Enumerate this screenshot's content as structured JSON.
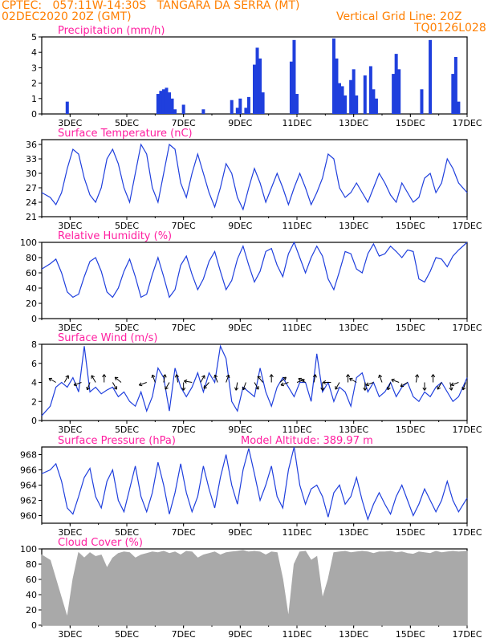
{
  "header": {
    "line1_left": "CPTEC:   057:11W-14:30S   TANGARA DA SERRA (MT)",
    "line2_left": "02DEC2020 20Z (GMT)",
    "line2_right": "Vertical Grid Line: 20Z",
    "line3_right": "TQ0126L028"
  },
  "colors": {
    "header": "#ff7f00",
    "panel_title": "#ff1fa0",
    "series": "#1f3fdd",
    "cloud": "#a9a9a9"
  },
  "x_axis": {
    "labels": [
      "3DEC",
      "5DEC",
      "7DEC",
      "9DEC",
      "11DEC",
      "13DEC",
      "15DEC",
      "17DEC"
    ],
    "label_days": [
      3,
      5,
      7,
      9,
      11,
      13,
      15,
      17
    ],
    "start_day": 2,
    "end_day": 17
  },
  "chart_data": [
    {
      "type": "bar",
      "title": "Precipitation (mm/h)",
      "ylim": [
        0,
        5
      ],
      "yticks": [
        0,
        1,
        2,
        3,
        4,
        5
      ],
      "x_day": [
        2.9,
        6.1,
        6.2,
        6.3,
        6.4,
        6.5,
        6.6,
        6.7,
        7.0,
        7.7,
        8.7,
        8.9,
        9.0,
        9.2,
        9.3,
        9.5,
        9.6,
        9.7,
        9.8,
        10.8,
        10.9,
        11.0,
        12.3,
        12.4,
        12.5,
        12.6,
        12.7,
        12.9,
        13.0,
        13.1,
        13.4,
        13.6,
        13.7,
        13.8,
        14.4,
        14.5,
        14.6,
        15.4,
        15.7,
        16.5,
        16.6,
        16.7
      ],
      "values": [
        0.8,
        1.3,
        1.5,
        1.6,
        1.7,
        1.4,
        1.0,
        0.3,
        0.6,
        0.3,
        0.9,
        0.4,
        1.0,
        0.4,
        1.1,
        3.2,
        4.3,
        3.6,
        1.4,
        3.4,
        4.8,
        1.3,
        4.9,
        3.6,
        2.0,
        1.8,
        1.2,
        2.2,
        2.9,
        1.2,
        2.5,
        3.1,
        1.6,
        1.0,
        2.6,
        3.9,
        2.9,
        1.6,
        4.8,
        2.6,
        3.7,
        0.8
      ]
    },
    {
      "type": "line",
      "title": "Surface Temperature (nC)",
      "ylim": [
        21,
        37
      ],
      "yticks": [
        21,
        24,
        27,
        30,
        33,
        36
      ],
      "x_day": [
        2.0,
        2.3,
        2.5,
        2.7,
        2.9,
        3.1,
        3.3,
        3.5,
        3.7,
        3.9,
        4.1,
        4.3,
        4.5,
        4.7,
        4.9,
        5.1,
        5.3,
        5.5,
        5.7,
        5.9,
        6.1,
        6.3,
        6.5,
        6.7,
        6.9,
        7.1,
        7.3,
        7.5,
        7.7,
        7.9,
        8.1,
        8.3,
        8.5,
        8.7,
        8.9,
        9.1,
        9.3,
        9.5,
        9.7,
        9.9,
        10.1,
        10.3,
        10.5,
        10.7,
        10.9,
        11.1,
        11.3,
        11.5,
        11.7,
        11.9,
        12.1,
        12.3,
        12.5,
        12.7,
        12.9,
        13.1,
        13.3,
        13.5,
        13.7,
        13.9,
        14.1,
        14.3,
        14.5,
        14.7,
        14.9,
        15.1,
        15.3,
        15.5,
        15.7,
        15.9,
        16.1,
        16.3,
        16.5,
        16.7,
        17.0
      ],
      "values": [
        26,
        25,
        23.5,
        26,
        31,
        35,
        34,
        29,
        25.5,
        24,
        27,
        33,
        35,
        32,
        27,
        24,
        30,
        36,
        34,
        27,
        24,
        30,
        36,
        35,
        28,
        25,
        30,
        34,
        30,
        26,
        23,
        27,
        32,
        30,
        25,
        22.5,
        27,
        31,
        28,
        24,
        27,
        30,
        27,
        23.5,
        27,
        30,
        27,
        23.5,
        26,
        29,
        34,
        33,
        27,
        25,
        26,
        28,
        26,
        24,
        27,
        30,
        28,
        25.5,
        24,
        28,
        26,
        24,
        25,
        29,
        30,
        26,
        28,
        33,
        31,
        28,
        26
      ]
    },
    {
      "type": "line",
      "title": "Relative Humidity (%)",
      "ylim": [
        0,
        100
      ],
      "yticks": [
        0,
        20,
        40,
        60,
        80,
        100
      ],
      "x_day": [
        2.0,
        2.3,
        2.5,
        2.7,
        2.9,
        3.1,
        3.3,
        3.5,
        3.7,
        3.9,
        4.1,
        4.3,
        4.5,
        4.7,
        4.9,
        5.1,
        5.3,
        5.5,
        5.7,
        5.9,
        6.1,
        6.3,
        6.5,
        6.7,
        6.9,
        7.1,
        7.3,
        7.5,
        7.7,
        7.9,
        8.1,
        8.3,
        8.5,
        8.7,
        8.9,
        9.1,
        9.3,
        9.5,
        9.7,
        9.9,
        10.1,
        10.3,
        10.5,
        10.7,
        10.9,
        11.1,
        11.3,
        11.5,
        11.7,
        11.9,
        12.1,
        12.3,
        12.5,
        12.7,
        12.9,
        13.1,
        13.3,
        13.5,
        13.7,
        13.9,
        14.1,
        14.3,
        14.5,
        14.7,
        14.9,
        15.1,
        15.3,
        15.5,
        15.7,
        15.9,
        16.1,
        16.3,
        16.5,
        16.7,
        17.0
      ],
      "values": [
        65,
        72,
        78,
        60,
        35,
        28,
        32,
        55,
        75,
        80,
        62,
        35,
        28,
        40,
        62,
        78,
        55,
        28,
        32,
        58,
        80,
        55,
        28,
        38,
        70,
        82,
        58,
        38,
        52,
        75,
        88,
        62,
        38,
        50,
        78,
        95,
        70,
        48,
        62,
        88,
        92,
        70,
        55,
        85,
        100,
        80,
        60,
        80,
        95,
        82,
        52,
        38,
        62,
        88,
        85,
        65,
        60,
        85,
        98,
        82,
        85,
        95,
        88,
        80,
        90,
        88,
        52,
        48,
        62,
        80,
        78,
        68,
        82,
        90,
        100
      ]
    },
    {
      "type": "line",
      "title": "Surface Wind (m/s)",
      "ylim": [
        0,
        8
      ],
      "yticks": [
        0,
        2,
        4,
        6,
        8
      ],
      "x_day": [
        2.0,
        2.3,
        2.5,
        2.7,
        2.9,
        3.1,
        3.3,
        3.5,
        3.7,
        3.9,
        4.1,
        4.3,
        4.5,
        4.7,
        4.9,
        5.1,
        5.3,
        5.5,
        5.7,
        5.9,
        6.1,
        6.3,
        6.5,
        6.7,
        6.9,
        7.1,
        7.3,
        7.5,
        7.7,
        7.9,
        8.1,
        8.3,
        8.5,
        8.7,
        8.9,
        9.1,
        9.3,
        9.5,
        9.7,
        9.9,
        10.1,
        10.3,
        10.5,
        10.7,
        10.9,
        11.1,
        11.3,
        11.5,
        11.7,
        11.9,
        12.1,
        12.3,
        12.5,
        12.7,
        12.9,
        13.1,
        13.3,
        13.5,
        13.7,
        13.9,
        14.1,
        14.3,
        14.5,
        14.7,
        14.9,
        15.1,
        15.3,
        15.5,
        15.7,
        15.9,
        16.1,
        16.3,
        16.5,
        16.7,
        17.0
      ],
      "values": [
        0.5,
        1.5,
        3.5,
        4.0,
        3.5,
        4.5,
        3.0,
        7.8,
        3.0,
        3.5,
        2.8,
        3.2,
        3.5,
        2.5,
        3.0,
        2.0,
        1.5,
        3.0,
        1.0,
        2.5,
        5.5,
        4.5,
        1.0,
        5.5,
        3.5,
        2.5,
        3.5,
        5.0,
        3.0,
        5.0,
        4.0,
        7.8,
        6.5,
        2.0,
        1.0,
        3.5,
        3.0,
        2.5,
        5.5,
        3.0,
        1.5,
        3.5,
        4.5,
        3.5,
        2.5,
        4.0,
        4.0,
        2.0,
        7.0,
        3.0,
        4.0,
        2.0,
        3.5,
        3.0,
        1.5,
        4.5,
        5.0,
        3.0,
        4.0,
        2.5,
        3.0,
        4.0,
        2.5,
        3.5,
        4.0,
        2.5,
        2.0,
        3.0,
        2.5,
        3.5,
        4.0,
        3.0,
        2.0,
        2.5,
        4.5
      ]
    },
    {
      "type": "line",
      "title": "Surface Pressure (hPa)",
      "ylim": [
        959,
        969
      ],
      "yticks": [
        960,
        962,
        964,
        966,
        968
      ],
      "annotation": "Model Altitude: 389.97 m",
      "x_day": [
        2.0,
        2.3,
        2.5,
        2.7,
        2.9,
        3.1,
        3.3,
        3.5,
        3.7,
        3.9,
        4.1,
        4.3,
        4.5,
        4.7,
        4.9,
        5.1,
        5.3,
        5.5,
        5.7,
        5.9,
        6.1,
        6.3,
        6.5,
        6.7,
        6.9,
        7.1,
        7.3,
        7.5,
        7.7,
        7.9,
        8.1,
        8.3,
        8.5,
        8.7,
        8.9,
        9.1,
        9.3,
        9.5,
        9.7,
        9.9,
        10.1,
        10.3,
        10.5,
        10.7,
        10.9,
        11.1,
        11.3,
        11.5,
        11.7,
        11.9,
        12.1,
        12.3,
        12.5,
        12.7,
        12.9,
        13.1,
        13.3,
        13.5,
        13.7,
        13.9,
        14.1,
        14.3,
        14.5,
        14.7,
        14.9,
        15.1,
        15.3,
        15.5,
        15.7,
        15.9,
        16.1,
        16.3,
        16.5,
        16.7,
        17.0
      ],
      "values": [
        965.5,
        966.0,
        966.8,
        964.5,
        961.0,
        960.2,
        962.5,
        965.0,
        966.2,
        962.5,
        961.0,
        964.5,
        966.0,
        962.0,
        960.5,
        963.5,
        966.5,
        962.5,
        960.5,
        963.0,
        967.0,
        964.0,
        960.2,
        963.0,
        966.8,
        963.0,
        960.5,
        962.5,
        966.5,
        963.5,
        961.0,
        965.0,
        968.0,
        964.0,
        961.5,
        966.0,
        968.8,
        965.5,
        962.0,
        964.0,
        966.5,
        962.5,
        961.0,
        966.0,
        969.0,
        964.0,
        961.5,
        963.5,
        964.0,
        962.5,
        959.8,
        963.0,
        964.0,
        961.5,
        962.5,
        965.0,
        962.0,
        959.5,
        961.5,
        963.0,
        961.5,
        960.2,
        962.5,
        964.0,
        962.0,
        960.0,
        961.5,
        963.5,
        962.0,
        960.5,
        962.0,
        964.5,
        962.0,
        960.5,
        962.3
      ]
    },
    {
      "type": "area",
      "title": "Cloud Cover (%)",
      "ylim": [
        0,
        100
      ],
      "yticks": [
        0,
        20,
        40,
        60,
        80,
        100
      ],
      "x_day": [
        2.0,
        2.3,
        2.5,
        2.7,
        2.9,
        3.1,
        3.3,
        3.5,
        3.7,
        3.9,
        4.1,
        4.3,
        4.5,
        4.7,
        4.9,
        5.1,
        5.3,
        5.5,
        5.7,
        5.9,
        6.1,
        6.3,
        6.5,
        6.7,
        6.9,
        7.1,
        7.3,
        7.5,
        7.7,
        7.9,
        8.1,
        8.3,
        8.5,
        8.7,
        8.9,
        9.1,
        9.3,
        9.5,
        9.7,
        9.9,
        10.1,
        10.3,
        10.5,
        10.7,
        10.9,
        11.1,
        11.3,
        11.5,
        11.7,
        11.9,
        12.1,
        12.3,
        12.5,
        12.7,
        12.9,
        13.1,
        13.3,
        13.5,
        13.7,
        13.9,
        14.1,
        14.3,
        14.5,
        14.7,
        14.9,
        15.1,
        15.3,
        15.5,
        15.7,
        15.9,
        16.1,
        16.3,
        16.5,
        16.7,
        17.0
      ],
      "values": [
        92,
        85,
        60,
        35,
        10,
        60,
        95,
        88,
        95,
        90,
        92,
        75,
        88,
        94,
        96,
        95,
        88,
        92,
        94,
        96,
        95,
        97,
        94,
        96,
        92,
        97,
        96,
        88,
        92,
        94,
        96,
        92,
        95,
        96,
        97,
        98,
        96,
        97,
        96,
        92,
        96,
        95,
        60,
        10,
        80,
        96,
        97,
        85,
        90,
        35,
        60,
        95,
        96,
        97,
        95,
        96,
        97,
        96,
        94,
        96,
        96,
        97,
        95,
        96,
        94,
        93,
        96,
        95,
        94,
        97,
        95,
        96,
        97,
        96,
        97
      ]
    }
  ]
}
